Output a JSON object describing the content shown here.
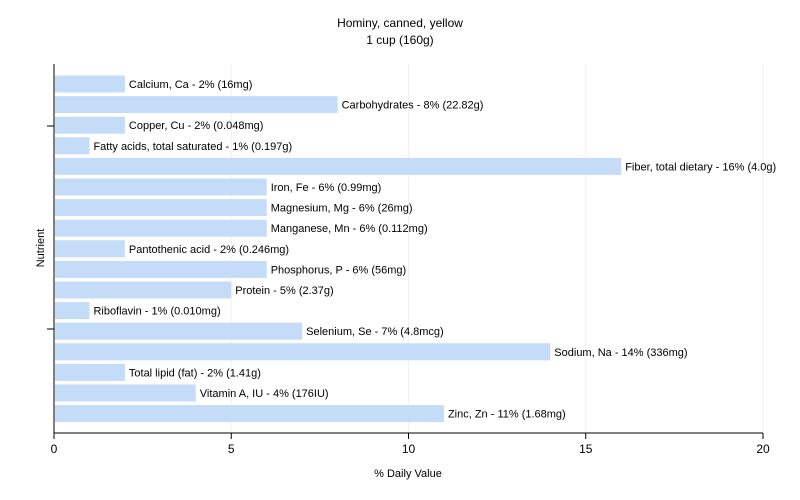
{
  "chart_data": {
    "type": "bar",
    "orientation": "horizontal",
    "title": "Hominy, canned, yellow",
    "subtitle": "1 cup (160g)",
    "xlabel": "% Daily Value",
    "ylabel": "Nutrient",
    "xlim": [
      0,
      20
    ],
    "xticks": [
      0,
      5,
      10,
      15,
      20
    ],
    "grid": true,
    "legend": "none",
    "bar_color": "#c5dcf8",
    "grid_color": "#eef0f4",
    "categories": [
      "Calcium, Ca",
      "Carbohydrates",
      "Copper, Cu",
      "Fatty acids, total saturated",
      "Fiber, total dietary",
      "Iron, Fe",
      "Magnesium, Mg",
      "Manganese, Mn",
      "Pantothenic acid",
      "Phosphorus, P",
      "Protein",
      "Riboflavin",
      "Selenium, Se",
      "Sodium, Na",
      "Total lipid (fat)",
      "Vitamin A, IU",
      "Zinc, Zn"
    ],
    "values": [
      2,
      8,
      2,
      1,
      16,
      6,
      6,
      6,
      2,
      6,
      5,
      1,
      7,
      14,
      2,
      4,
      11
    ],
    "labels": [
      "Calcium, Ca - 2% (16mg)",
      "Carbohydrates - 8% (22.82g)",
      "Copper, Cu - 2% (0.048mg)",
      "Fatty acids, total saturated - 1% (0.197g)",
      "Fiber, total dietary - 16% (4.0g)",
      "Iron, Fe - 6% (0.99mg)",
      "Magnesium, Mg - 6% (26mg)",
      "Manganese, Mn - 6% (0.112mg)",
      "Pantothenic acid - 2% (0.246mg)",
      "Phosphorus, P - 6% (56mg)",
      "Protein - 5% (2.37g)",
      "Riboflavin - 1% (0.010mg)",
      "Selenium, Se - 7% (4.8mcg)",
      "Sodium, Na - 14% (336mg)",
      "Total lipid (fat) - 2% (1.41g)",
      "Vitamin A, IU - 4% (176IU)",
      "Zinc, Zn - 11% (1.68mg)"
    ]
  }
}
